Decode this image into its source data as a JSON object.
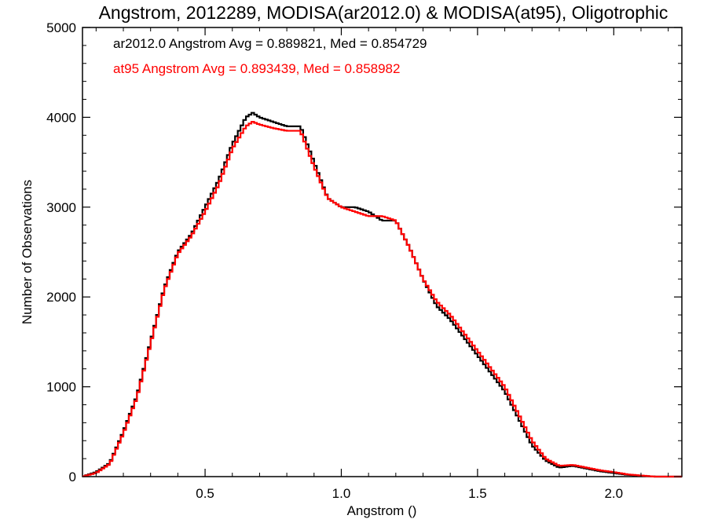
{
  "chart_data": {
    "type": "line",
    "title": "Angstrom, 2012289, MODISA(ar2012.0) & MODISA(at95), Oligotrophic",
    "xlabel": "Angstrom ()",
    "ylabel": "Number of Observations",
    "xlim": [
      0.05,
      2.25
    ],
    "ylim": [
      0,
      5000
    ],
    "x_ticks": [
      0.5,
      1.0,
      1.5,
      2.0
    ],
    "x_tick_labels": [
      "0.5",
      "1.0",
      "1.5",
      "2.0"
    ],
    "y_ticks": [
      0,
      1000,
      2000,
      3000,
      4000,
      5000
    ],
    "y_tick_labels": [
      "0",
      "1000",
      "2000",
      "3000",
      "4000",
      "5000"
    ],
    "grid": false,
    "step": true,
    "annotations": [
      {
        "text": "ar2012.0 Angstrom Avg = 0.889821, Med = 0.854729",
        "color": "#000000"
      },
      {
        "text": "at95 Angstrom Avg = 0.893439, Med = 0.858982",
        "color": "#ff0000"
      }
    ],
    "x": [
      0.05,
      0.1,
      0.15,
      0.2,
      0.25,
      0.3,
      0.35,
      0.4,
      0.45,
      0.5,
      0.55,
      0.6,
      0.65,
      0.675,
      0.7,
      0.75,
      0.8,
      0.85,
      0.9,
      0.95,
      1.0,
      1.05,
      1.1,
      1.15,
      1.2,
      1.25,
      1.3,
      1.35,
      1.4,
      1.45,
      1.5,
      1.55,
      1.6,
      1.65,
      1.7,
      1.75,
      1.8,
      1.85,
      1.9,
      1.95,
      2.0,
      2.05,
      2.1,
      2.13,
      2.15,
      2.2,
      2.25
    ],
    "series": [
      {
        "name": "ar2012.0",
        "color": "#000000",
        "values": [
          0,
          50,
          150,
          500,
          900,
          1500,
          2100,
          2500,
          2700,
          3000,
          3300,
          3700,
          4000,
          4050,
          4000,
          3950,
          3900,
          3900,
          3500,
          3100,
          3000,
          3000,
          2950,
          2850,
          2850,
          2550,
          2200,
          1900,
          1750,
          1550,
          1350,
          1150,
          950,
          650,
          350,
          180,
          100,
          120,
          90,
          60,
          40,
          20,
          10,
          5,
          0,
          0,
          0
        ]
      },
      {
        "name": "at95",
        "color": "#ff0000",
        "values": [
          0,
          40,
          140,
          480,
          880,
          1480,
          2080,
          2480,
          2680,
          2950,
          3250,
          3650,
          3900,
          3950,
          3920,
          3880,
          3850,
          3850,
          3450,
          3100,
          3000,
          2950,
          2900,
          2900,
          2850,
          2550,
          2200,
          1950,
          1800,
          1600,
          1400,
          1200,
          1000,
          700,
          400,
          200,
          120,
          130,
          100,
          70,
          50,
          25,
          12,
          5,
          0,
          0,
          0
        ]
      }
    ]
  }
}
